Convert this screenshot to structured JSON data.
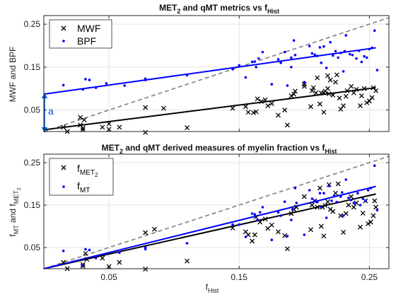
{
  "colors": {
    "mwf": "#000000",
    "bpf": "#0000ff",
    "identity": "#808080",
    "annotation": "#0055cc"
  },
  "chart_data": [
    {
      "type": "scatter",
      "title": "MET",
      "title_sub": "2",
      "title_rest": " and qMT metrics vs f",
      "title_sub2": "Hist",
      "ylabel": "MWF and BPF",
      "xlim": [
        0.0,
        0.265
      ],
      "ylim": [
        0.0,
        0.27
      ],
      "yticks": [
        0.05,
        0.15,
        0.25
      ],
      "yticklabels": [
        "0.05",
        "0.15",
        "0.25"
      ],
      "grid": true,
      "legend": [
        {
          "label": "MWF",
          "marker": "x"
        },
        {
          "label": "BPF",
          "marker": "dot"
        }
      ],
      "annotation": "a",
      "identity_line": {
        "x": [
          0.0,
          0.265
        ],
        "y": [
          0.0,
          0.265
        ]
      },
      "series": [
        {
          "name": "MWF",
          "marker": "x",
          "fit": {
            "x": [
              0.0,
              0.255
            ],
            "y": [
              0.004,
              0.102
            ]
          },
          "points": [
            [
              0.015,
              0.01
            ],
            [
              0.018,
              0.0
            ],
            [
              0.028,
              0.015
            ],
            [
              0.028,
              0.033
            ],
            [
              0.03,
              0.004
            ],
            [
              0.031,
              0.027
            ],
            [
              0.03,
              0.008
            ],
            [
              0.045,
              0.01
            ],
            [
              0.05,
              0.018
            ],
            [
              0.05,
              0.005
            ],
            [
              0.058,
              0.01
            ],
            [
              0.078,
              0.056
            ],
            [
              0.092,
              0.054
            ],
            [
              0.078,
              -0.002
            ],
            [
              0.11,
              0.009
            ],
            [
              0.145,
              0.054
            ],
            [
              0.155,
              0.058
            ],
            [
              0.157,
              0.045
            ],
            [
              0.161,
              0.044
            ],
            [
              0.163,
              0.046
            ],
            [
              0.164,
              0.076
            ],
            [
              0.167,
              0.07
            ],
            [
              0.17,
              0.074
            ],
            [
              0.172,
              0.06
            ],
            [
              0.175,
              0.065
            ],
            [
              0.18,
              0.038
            ],
            [
              0.185,
              0.05
            ],
            [
              0.187,
              0.015
            ],
            [
              0.19,
              0.083
            ],
            [
              0.192,
              0.087
            ],
            [
              0.193,
              0.094
            ],
            [
              0.2,
              0.11
            ],
            [
              0.205,
              0.058
            ],
            [
              0.206,
              0.095
            ],
            [
              0.207,
              0.102
            ],
            [
              0.209,
              0.09
            ],
            [
              0.21,
              0.125
            ],
            [
              0.212,
              0.064
            ],
            [
              0.213,
              0.09
            ],
            [
              0.215,
              0.045
            ],
            [
              0.215,
              0.09
            ],
            [
              0.216,
              0.094
            ],
            [
              0.218,
              0.1
            ],
            [
              0.218,
              0.13
            ],
            [
              0.219,
              0.088
            ],
            [
              0.222,
              0.085
            ],
            [
              0.224,
              0.115
            ],
            [
              0.225,
              0.132
            ],
            [
              0.227,
              0.078
            ],
            [
              0.228,
              0.052
            ],
            [
              0.232,
              0.082
            ],
            [
              0.233,
              0.095
            ],
            [
              0.236,
              0.105
            ],
            [
              0.238,
              0.09
            ],
            [
              0.24,
              0.098
            ],
            [
              0.243,
              0.06
            ],
            [
              0.244,
              0.083
            ],
            [
              0.246,
              0.1
            ],
            [
              0.248,
              0.067
            ],
            [
              0.25,
              0.071
            ],
            [
              0.252,
              0.079
            ],
            [
              0.253,
              0.102
            ],
            [
              0.255,
              0.095
            ],
            [
              0.23,
              0.06
            ],
            [
              0.2,
              0.105
            ],
            [
              0.22,
              0.12
            ]
          ]
        },
        {
          "name": "BPF",
          "marker": "dot",
          "fit": {
            "x": [
              0.0,
              0.255
            ],
            "y": [
              0.087,
              0.195
            ]
          },
          "points": [
            [
              0.015,
              0.108
            ],
            [
              0.03,
              0.098
            ],
            [
              0.032,
              0.122
            ],
            [
              0.035,
              0.12
            ],
            [
              0.04,
              0.102
            ],
            [
              0.048,
              0.112
            ],
            [
              0.062,
              0.107
            ],
            [
              0.078,
              0.12
            ],
            [
              0.078,
              0.123
            ],
            [
              0.11,
              0.131
            ],
            [
              0.145,
              0.145
            ],
            [
              0.15,
              0.154
            ],
            [
              0.155,
              0.126
            ],
            [
              0.16,
              0.162
            ],
            [
              0.162,
              0.163
            ],
            [
              0.163,
              0.15
            ],
            [
              0.165,
              0.17
            ],
            [
              0.168,
              0.185
            ],
            [
              0.175,
              0.11
            ],
            [
              0.18,
              0.168
            ],
            [
              0.182,
              0.16
            ],
            [
              0.185,
              0.185
            ],
            [
              0.187,
              0.107
            ],
            [
              0.19,
              0.15
            ],
            [
              0.19,
              0.172
            ],
            [
              0.192,
              0.212
            ],
            [
              0.193,
              0.178
            ],
            [
              0.2,
              0.115
            ],
            [
              0.204,
              0.199
            ],
            [
              0.206,
              0.182
            ],
            [
              0.208,
              0.179
            ],
            [
              0.21,
              0.176
            ],
            [
              0.212,
              0.196
            ],
            [
              0.213,
              0.16
            ],
            [
              0.215,
              0.198
            ],
            [
              0.217,
              0.148
            ],
            [
              0.22,
              0.208
            ],
            [
              0.222,
              0.177
            ],
            [
              0.224,
              0.187
            ],
            [
              0.226,
              0.172
            ],
            [
              0.228,
              0.183
            ],
            [
              0.23,
              0.14
            ],
            [
              0.232,
              0.224
            ],
            [
              0.235,
              0.18
            ],
            [
              0.237,
              0.178
            ],
            [
              0.24,
              0.17
            ],
            [
              0.242,
              0.188
            ],
            [
              0.244,
              0.162
            ],
            [
              0.246,
              0.175
            ],
            [
              0.248,
              0.172
            ],
            [
              0.25,
              0.192
            ],
            [
              0.252,
              0.195
            ],
            [
              0.254,
              0.235
            ],
            [
              0.256,
              0.143
            ],
            [
              0.231,
              0.187
            ]
          ]
        }
      ]
    },
    {
      "type": "scatter",
      "title": "MET",
      "title_sub": "2",
      "title_rest": " and qMT derived measures of myelin fraction vs f",
      "title_sub2": "Hist",
      "ylabel_main": "f",
      "ylabel_sub1": "MT",
      "ylabel_mid": " and f",
      "ylabel_sub2": "MET",
      "ylabel_sub3": "2",
      "xlabel": "f",
      "xlabel_sub": "Hist",
      "xlim": [
        0.0,
        0.265
      ],
      "ylim": [
        0.0,
        0.27
      ],
      "xticks": [
        0.05,
        0.15,
        0.25
      ],
      "xticklabels": [
        "0.05",
        "0.15",
        "0.25"
      ],
      "yticks": [
        0.05,
        0.15,
        0.25
      ],
      "yticklabels": [
        "0.05",
        "0.15",
        "0.25"
      ],
      "grid": true,
      "legend": [
        {
          "label": "f",
          "sub": "MET",
          "subsub": "2",
          "marker": "x"
        },
        {
          "label": "f",
          "sub": "MT",
          "marker": "dot"
        }
      ],
      "identity_line": {
        "x": [
          0.0,
          0.265
        ],
        "y": [
          0.0,
          0.265
        ]
      },
      "series": [
        {
          "name": "fMET2",
          "marker": "x",
          "fit": {
            "x": [
              0.0,
              0.255
            ],
            "y": [
              0.0,
              0.176
            ]
          },
          "points": [
            [
              0.015,
              0.015
            ],
            [
              0.018,
              0.0
            ],
            [
              0.03,
              0.006
            ],
            [
              0.03,
              0.01
            ],
            [
              0.032,
              0.036
            ],
            [
              0.033,
              0.022
            ],
            [
              0.045,
              0.025
            ],
            [
              0.05,
              0.005
            ],
            [
              0.058,
              0.015
            ],
            [
              0.078,
              0.085
            ],
            [
              0.085,
              0.093
            ],
            [
              0.078,
              -0.001
            ],
            [
              0.11,
              0.018
            ],
            [
              0.145,
              0.096
            ],
            [
              0.155,
              0.087
            ],
            [
              0.157,
              0.08
            ],
            [
              0.16,
              0.065
            ],
            [
              0.162,
              0.08
            ],
            [
              0.163,
              0.122
            ],
            [
              0.166,
              0.11
            ],
            [
              0.17,
              0.117
            ],
            [
              0.172,
              0.095
            ],
            [
              0.175,
              0.103
            ],
            [
              0.18,
              0.087
            ],
            [
              0.185,
              0.078
            ],
            [
              0.187,
              0.047
            ],
            [
              0.19,
              0.13
            ],
            [
              0.192,
              0.14
            ],
            [
              0.194,
              0.145
            ],
            [
              0.2,
              0.17
            ],
            [
              0.205,
              0.092
            ],
            [
              0.206,
              0.15
            ],
            [
              0.208,
              0.16
            ],
            [
              0.21,
              0.145
            ],
            [
              0.212,
              0.19
            ],
            [
              0.213,
              0.1
            ],
            [
              0.214,
              0.145
            ],
            [
              0.215,
              0.077
            ],
            [
              0.216,
              0.149
            ],
            [
              0.218,
              0.158
            ],
            [
              0.219,
              0.198
            ],
            [
              0.22,
              0.14
            ],
            [
              0.222,
              0.135
            ],
            [
              0.224,
              0.178
            ],
            [
              0.226,
              0.2
            ],
            [
              0.228,
              0.125
            ],
            [
              0.23,
              0.086
            ],
            [
              0.232,
              0.13
            ],
            [
              0.234,
              0.15
            ],
            [
              0.236,
              0.17
            ],
            [
              0.238,
              0.145
            ],
            [
              0.24,
              0.155
            ],
            [
              0.243,
              0.098
            ],
            [
              0.245,
              0.131
            ],
            [
              0.247,
              0.16
            ],
            [
              0.249,
              0.106
            ],
            [
              0.251,
              0.11
            ],
            [
              0.253,
              0.125
            ],
            [
              0.254,
              0.16
            ],
            [
              0.255,
              0.145
            ]
          ]
        },
        {
          "name": "fMT",
          "marker": "dot",
          "fit": {
            "x": [
              0.0,
              0.255
            ],
            "y": [
              0.0,
              0.194
            ]
          },
          "points": [
            [
              0.015,
              0.042
            ],
            [
              0.03,
              0.008
            ],
            [
              0.032,
              0.046
            ],
            [
              0.035,
              0.044
            ],
            [
              0.04,
              0.025
            ],
            [
              0.048,
              0.035
            ],
            [
              0.058,
              0.038
            ],
            [
              0.078,
              0.046
            ],
            [
              0.078,
              0.05
            ],
            [
              0.11,
              0.06
            ],
            [
              0.145,
              0.104
            ],
            [
              0.15,
              0.104
            ],
            [
              0.155,
              0.075
            ],
            [
              0.16,
              0.13
            ],
            [
              0.162,
              0.128
            ],
            [
              0.164,
              0.115
            ],
            [
              0.166,
              0.133
            ],
            [
              0.168,
              0.145
            ],
            [
              0.175,
              0.068
            ],
            [
              0.18,
              0.133
            ],
            [
              0.182,
              0.125
            ],
            [
              0.185,
              0.158
            ],
            [
              0.187,
              0.077
            ],
            [
              0.19,
              0.115
            ],
            [
              0.191,
              0.14
            ],
            [
              0.193,
              0.19
            ],
            [
              0.194,
              0.155
            ],
            [
              0.2,
              0.08
            ],
            [
              0.204,
              0.185
            ],
            [
              0.206,
              0.165
            ],
            [
              0.208,
              0.16
            ],
            [
              0.21,
              0.157
            ],
            [
              0.212,
              0.178
            ],
            [
              0.213,
              0.145
            ],
            [
              0.215,
              0.178
            ],
            [
              0.217,
              0.12
            ],
            [
              0.219,
              0.195
            ],
            [
              0.221,
              0.16
            ],
            [
              0.223,
              0.172
            ],
            [
              0.225,
              0.157
            ],
            [
              0.228,
              0.17
            ],
            [
              0.23,
              0.125
            ],
            [
              0.232,
              0.21
            ],
            [
              0.234,
              0.167
            ],
            [
              0.236,
              0.162
            ],
            [
              0.238,
              0.155
            ],
            [
              0.241,
              0.178
            ],
            [
              0.243,
              0.15
            ],
            [
              0.245,
              0.165
            ],
            [
              0.247,
              0.16
            ],
            [
              0.249,
              0.185
            ],
            [
              0.251,
              0.19
            ],
            [
              0.254,
              0.243
            ],
            [
              0.256,
              0.138
            ],
            [
              0.229,
              0.18
            ]
          ]
        }
      ]
    }
  ]
}
